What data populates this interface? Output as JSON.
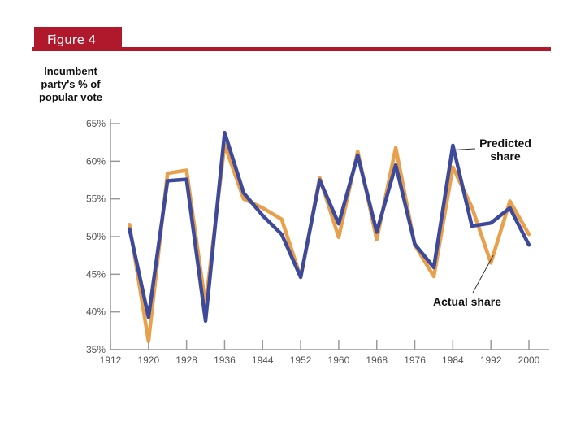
{
  "header": {
    "figure_label": "Figure 4",
    "accent_color": "#b0182b"
  },
  "chart_data": {
    "type": "line",
    "title": "",
    "ylabel_lines": [
      "Incumbent",
      "party's % of",
      "popular vote"
    ],
    "xlabel": "",
    "xlim": [
      1912,
      2000
    ],
    "ylim": [
      35,
      65
    ],
    "x_ticks": [
      1912,
      1920,
      1928,
      1936,
      1944,
      1952,
      1960,
      1968,
      1976,
      1984,
      1992,
      2000
    ],
    "x_tick_labels": [
      "1912",
      "1920",
      "1928",
      "1936",
      "1944",
      "1952",
      "1960",
      "1968",
      "1976",
      "1984",
      "1992",
      "2000"
    ],
    "y_ticks": [
      35,
      40,
      45,
      50,
      55,
      60,
      65
    ],
    "y_tick_labels": [
      "35%",
      "40%",
      "45%",
      "50%",
      "55%",
      "60%",
      "65%"
    ],
    "x": [
      1916,
      1920,
      1924,
      1928,
      1932,
      1936,
      1940,
      1944,
      1948,
      1952,
      1956,
      1960,
      1964,
      1968,
      1972,
      1976,
      1980,
      1984,
      1988,
      1992,
      1996,
      2000
    ],
    "series": [
      {
        "name": "Actual share",
        "color": "#e8a04c",
        "values": [
          51.6,
          36.1,
          58.4,
          58.8,
          40.9,
          62.2,
          55.0,
          53.8,
          52.3,
          44.6,
          57.8,
          49.9,
          61.3,
          49.6,
          61.8,
          48.9,
          44.7,
          59.2,
          53.9,
          46.5,
          54.7,
          50.3
        ]
      },
      {
        "name": "Predicted share",
        "color": "#3d4a9c",
        "values": [
          51.0,
          39.3,
          57.4,
          57.6,
          38.8,
          63.8,
          55.8,
          52.8,
          50.3,
          44.6,
          57.5,
          51.7,
          60.8,
          50.6,
          59.5,
          49.0,
          45.9,
          62.1,
          51.4,
          51.8,
          53.8,
          48.9
        ]
      }
    ],
    "annotations": [
      {
        "lines": [
          "Predicted",
          "share"
        ],
        "target_series": "Predicted share",
        "target_x": 1984.5,
        "target_y": 61.5
      },
      {
        "lines": [
          "Actual share"
        ],
        "target_series": "Actual share",
        "target_x": 1992.5,
        "target_y": 47.5
      }
    ]
  }
}
